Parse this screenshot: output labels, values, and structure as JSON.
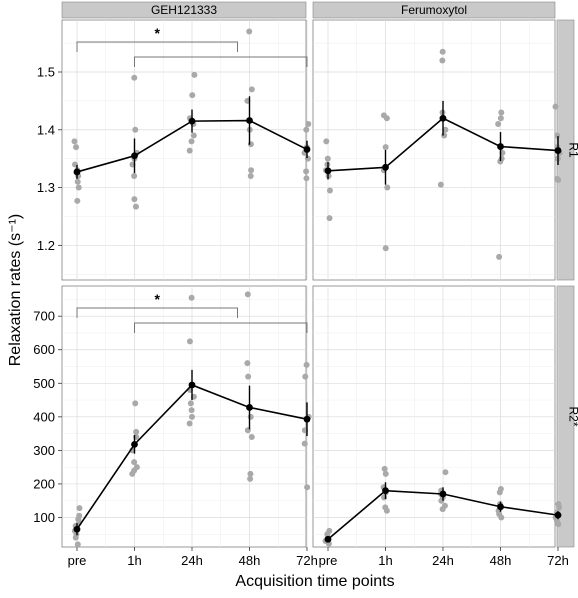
{
  "chart_data": {
    "type": "scatter",
    "xlabel": "Acquisition time points",
    "ylabel": "Relaxation rates (s⁻¹)",
    "categories": [
      "pre",
      "1h",
      "24h",
      "48h",
      "72h"
    ],
    "col_labels": [
      "GEH121333",
      "Ferumoxytol"
    ],
    "rows": [
      {
        "label": "R1",
        "ylim": [
          1.14,
          1.59
        ],
        "yticks": [
          1.2,
          1.3,
          1.4,
          1.5
        ],
        "panels": [
          {
            "col": "GEH121333",
            "mean": [
              1.327,
              1.355,
              1.415,
              1.416,
              1.366
            ],
            "err": [
              0.012,
              0.03,
              0.02,
              0.042,
              0.015
            ],
            "raw": [
              [
                1.38,
                1.37,
                1.34,
                1.33,
                1.32,
                1.31,
                1.3,
                1.277
              ],
              [
                1.49,
                1.4,
                1.36,
                1.35,
                1.34,
                1.32,
                1.28,
                1.267
              ],
              [
                1.495,
                1.46,
                1.42,
                1.41,
                1.39,
                1.38,
                1.364
              ],
              [
                1.57,
                1.47,
                1.45,
                1.4,
                1.375,
                1.33,
                1.32
              ],
              [
                1.41,
                1.4,
                1.37,
                1.36,
                1.35,
                1.328,
                1.316
              ]
            ],
            "significance": [
              {
                "from": "pre",
                "to": "48h",
                "label": "*"
              },
              {
                "from": "1h",
                "to": "72h",
                "label": ""
              }
            ]
          },
          {
            "col": "Ferumoxytol",
            "mean": [
              1.329,
              1.335,
              1.42,
              1.371,
              1.364
            ],
            "err": [
              0.015,
              0.03,
              0.03,
              0.025,
              0.025
            ],
            "raw": [
              [
                1.38,
                1.35,
                1.34,
                1.33,
                1.32,
                1.295,
                1.247
              ],
              [
                1.425,
                1.42,
                1.37,
                1.33,
                1.3,
                1.195
              ],
              [
                1.535,
                1.52,
                1.43,
                1.42,
                1.4,
                1.39,
                1.305
              ],
              [
                1.43,
                1.42,
                1.41,
                1.37,
                1.36,
                1.35,
                1.345,
                1.18
              ],
              [
                1.44,
                1.39,
                1.37,
                1.36,
                1.35,
                1.315,
                1.313
              ]
            ]
          }
        ]
      },
      {
        "label": "R2*",
        "ylim": [
          12,
          790
        ],
        "yticks": [
          100,
          200,
          300,
          400,
          500,
          600,
          700
        ],
        "panels": [
          {
            "col": "GEH121333",
            "mean": [
              65,
              318,
              495,
              428,
              393
            ],
            "err": [
              18,
              28,
              45,
              65,
              50
            ],
            "raw": [
              [
                128,
                105,
                95,
                85,
                75,
                70,
                60,
                50,
                40,
                20
              ],
              [
                440,
                355,
                340,
                300,
                265,
                250,
                240,
                230
              ],
              [
                755,
                625,
                480,
                460,
                440,
                420,
                400,
                380
              ],
              [
                765,
                560,
                520,
                400,
                360,
                340,
                230,
                215
              ],
              [
                555,
                520,
                400,
                360,
                320,
                190
              ]
            ],
            "significance": [
              {
                "from": "pre",
                "to": "48h",
                "label": "*"
              },
              {
                "from": "1h",
                "to": "72h",
                "label": ""
              }
            ]
          },
          {
            "col": "Ferumoxytol",
            "mean": [
              35,
              180,
              170,
              132,
              107
            ],
            "err": [
              8,
              25,
              20,
              15,
              12
            ],
            "raw": [
              [
                60,
                50,
                40,
                30,
                22
              ],
              [
                245,
                230,
                190,
                175,
                160,
                130,
                120
              ],
              [
                235,
                180,
                170,
                160,
                150,
                135,
                125
              ],
              [
                185,
                175,
                140,
                130,
                120,
                110,
                100
              ],
              [
                140,
                130,
                115,
                100,
                90,
                80
              ]
            ]
          }
        ]
      }
    ]
  }
}
